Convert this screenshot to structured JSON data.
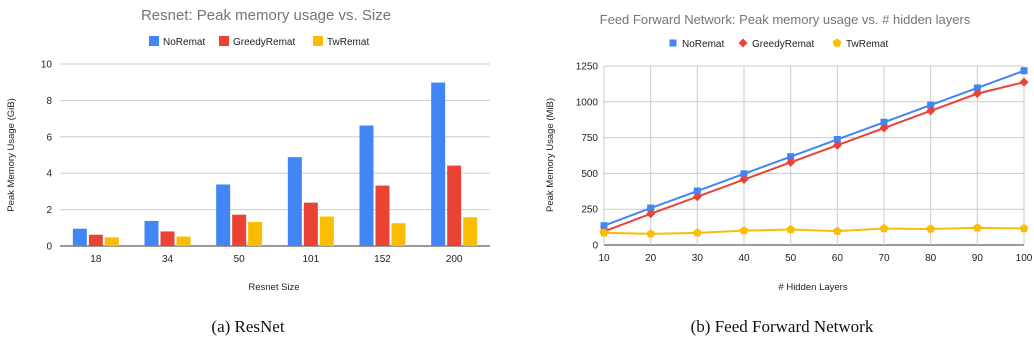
{
  "chart_data": [
    {
      "type": "bar",
      "title": "Resnet: Peak memory usage vs. Size",
      "xlabel": "Resnet Size",
      "ylabel": "Peak Memory Usage (GiB)",
      "ylim": [
        0,
        10
      ],
      "yticks": [
        0,
        2,
        4,
        6,
        8,
        10
      ],
      "grid": true,
      "legend_position": "top",
      "caption": "(a) ResNet",
      "categories": [
        "18",
        "34",
        "50",
        "101",
        "152",
        "200"
      ],
      "series": [
        {
          "name": "NoRemat",
          "color": "#4285f4",
          "values": [
            0.95,
            1.38,
            3.38,
            4.88,
            6.62,
            8.98
          ]
        },
        {
          "name": "GreedyRemat",
          "color": "#ea4335",
          "values": [
            0.62,
            0.8,
            1.72,
            2.38,
            3.32,
            4.42
          ]
        },
        {
          "name": "TwRemat",
          "color": "#fbbc04",
          "values": [
            0.48,
            0.52,
            1.32,
            1.62,
            1.25,
            1.58
          ]
        }
      ]
    },
    {
      "type": "line",
      "title": "Feed Forward Network: Peak memory usage vs. # hidden layers",
      "xlabel": "# Hidden Layers",
      "ylabel": "Peak Memory Usage (MiB)",
      "xlim": [
        10,
        100
      ],
      "ylim": [
        0,
        1250
      ],
      "xticks": [
        10,
        20,
        30,
        40,
        50,
        60,
        70,
        80,
        90,
        100
      ],
      "yticks": [
        0,
        250,
        500,
        750,
        1000,
        1250
      ],
      "grid": true,
      "legend_position": "top",
      "caption": "(b) Feed Forward Network",
      "x": [
        10,
        20,
        30,
        40,
        50,
        60,
        70,
        80,
        90,
        100
      ],
      "series": [
        {
          "name": "NoRemat",
          "color": "#4285f4",
          "marker": "square",
          "values": [
            135,
            258,
            377,
            497,
            617,
            737,
            857,
            977,
            1097,
            1217
          ]
        },
        {
          "name": "GreedyRemat",
          "color": "#ea4335",
          "marker": "diamond",
          "values": [
            95,
            218,
            337,
            457,
            577,
            697,
            817,
            937,
            1057,
            1137
          ]
        },
        {
          "name": "TwRemat",
          "color": "#fbbc04",
          "marker": "pentagon",
          "values": [
            85,
            78,
            85,
            100,
            108,
            97,
            115,
            112,
            120,
            115
          ]
        }
      ]
    }
  ]
}
